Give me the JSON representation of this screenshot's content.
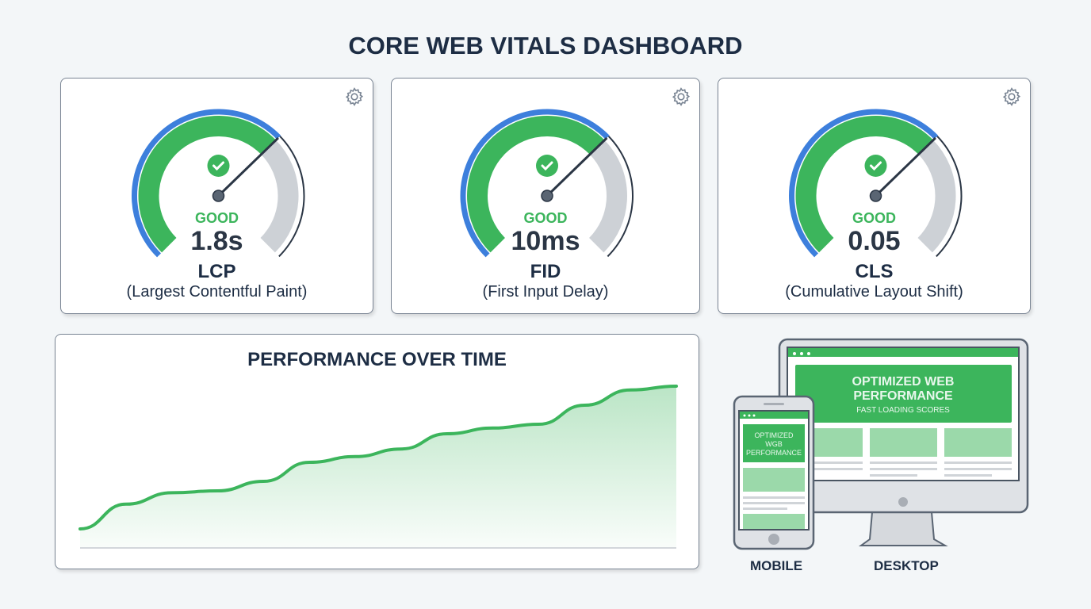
{
  "title": "CORE WEB VITALS DASHBOARD",
  "colors": {
    "good": "#3cb55c",
    "blue": "#3d7fdc",
    "grey": "#cdd1d6",
    "text": "#1d2d44"
  },
  "metrics": [
    {
      "status": "GOOD",
      "value": "1.8s",
      "abbr": "LCP",
      "full": "(Largest Contentful Paint)",
      "gauge_level": 0.67,
      "icon": "gear-icon"
    },
    {
      "status": "GOOD",
      "value": "10ms",
      "abbr": "FID",
      "full": "(First Input Delay)",
      "gauge_level": 0.67,
      "icon": "gear-icon"
    },
    {
      "status": "GOOD",
      "value": "0.05",
      "abbr": "CLS",
      "full": "(Cumulative Layout Shift)",
      "gauge_level": 0.67,
      "icon": "gear-icon"
    }
  ],
  "performance": {
    "title": "PERFORMANCE OVER TIME"
  },
  "chart_data": {
    "type": "area",
    "title": "PERFORMANCE OVER TIME",
    "xlabel": "",
    "ylabel": "",
    "ylim": [
      0,
      100
    ],
    "grid": false,
    "values": [
      10,
      23,
      29,
      30,
      35,
      45,
      48,
      52,
      60,
      63,
      65,
      75,
      83,
      85
    ]
  },
  "devices": {
    "mobile": {
      "label": "MOBILE",
      "banner": [
        "OPTIMIZED",
        "WGB",
        "PERFORMANCE"
      ]
    },
    "desktop": {
      "label": "DESKTOP",
      "banner_title": [
        "OPTIMIZED WEB",
        "PERFORMANCE"
      ],
      "banner_sub": "FAST LOADING SCORES"
    }
  }
}
